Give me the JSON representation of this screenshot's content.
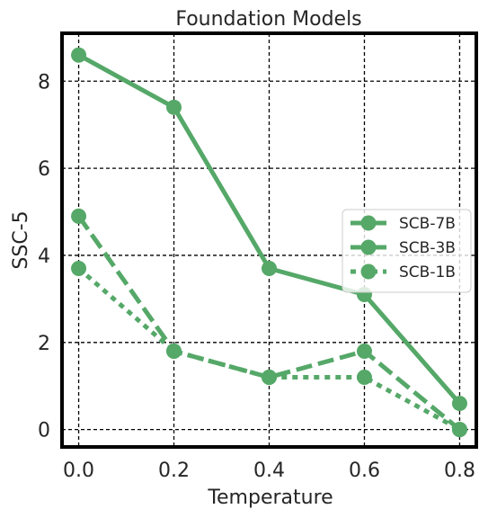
{
  "chart_data": {
    "type": "line",
    "title": "Foundation Models",
    "xlabel": "Temperature",
    "ylabel": "SSC-5",
    "x": [
      0.0,
      0.2,
      0.4,
      0.6,
      0.8
    ],
    "xticks": [
      "0.0",
      "0.2",
      "0.4",
      "0.6",
      "0.8"
    ],
    "yticks": [
      "0",
      "2",
      "4",
      "6",
      "8"
    ],
    "xlim": [
      -0.035,
      0.835
    ],
    "ylim": [
      -0.4,
      9.1
    ],
    "grid": true,
    "legend_position": "center-right",
    "color": "#55a868",
    "series": [
      {
        "name": "SCB-7B",
        "style": "solid",
        "values": [
          8.6,
          7.4,
          3.7,
          3.1,
          0.6
        ]
      },
      {
        "name": "SCB-3B",
        "style": "dashed",
        "values": [
          4.9,
          1.8,
          1.2,
          1.8,
          0.0
        ]
      },
      {
        "name": "SCB-1B",
        "style": "dotted",
        "values": [
          3.7,
          1.8,
          1.2,
          1.2,
          0.0
        ]
      }
    ]
  }
}
